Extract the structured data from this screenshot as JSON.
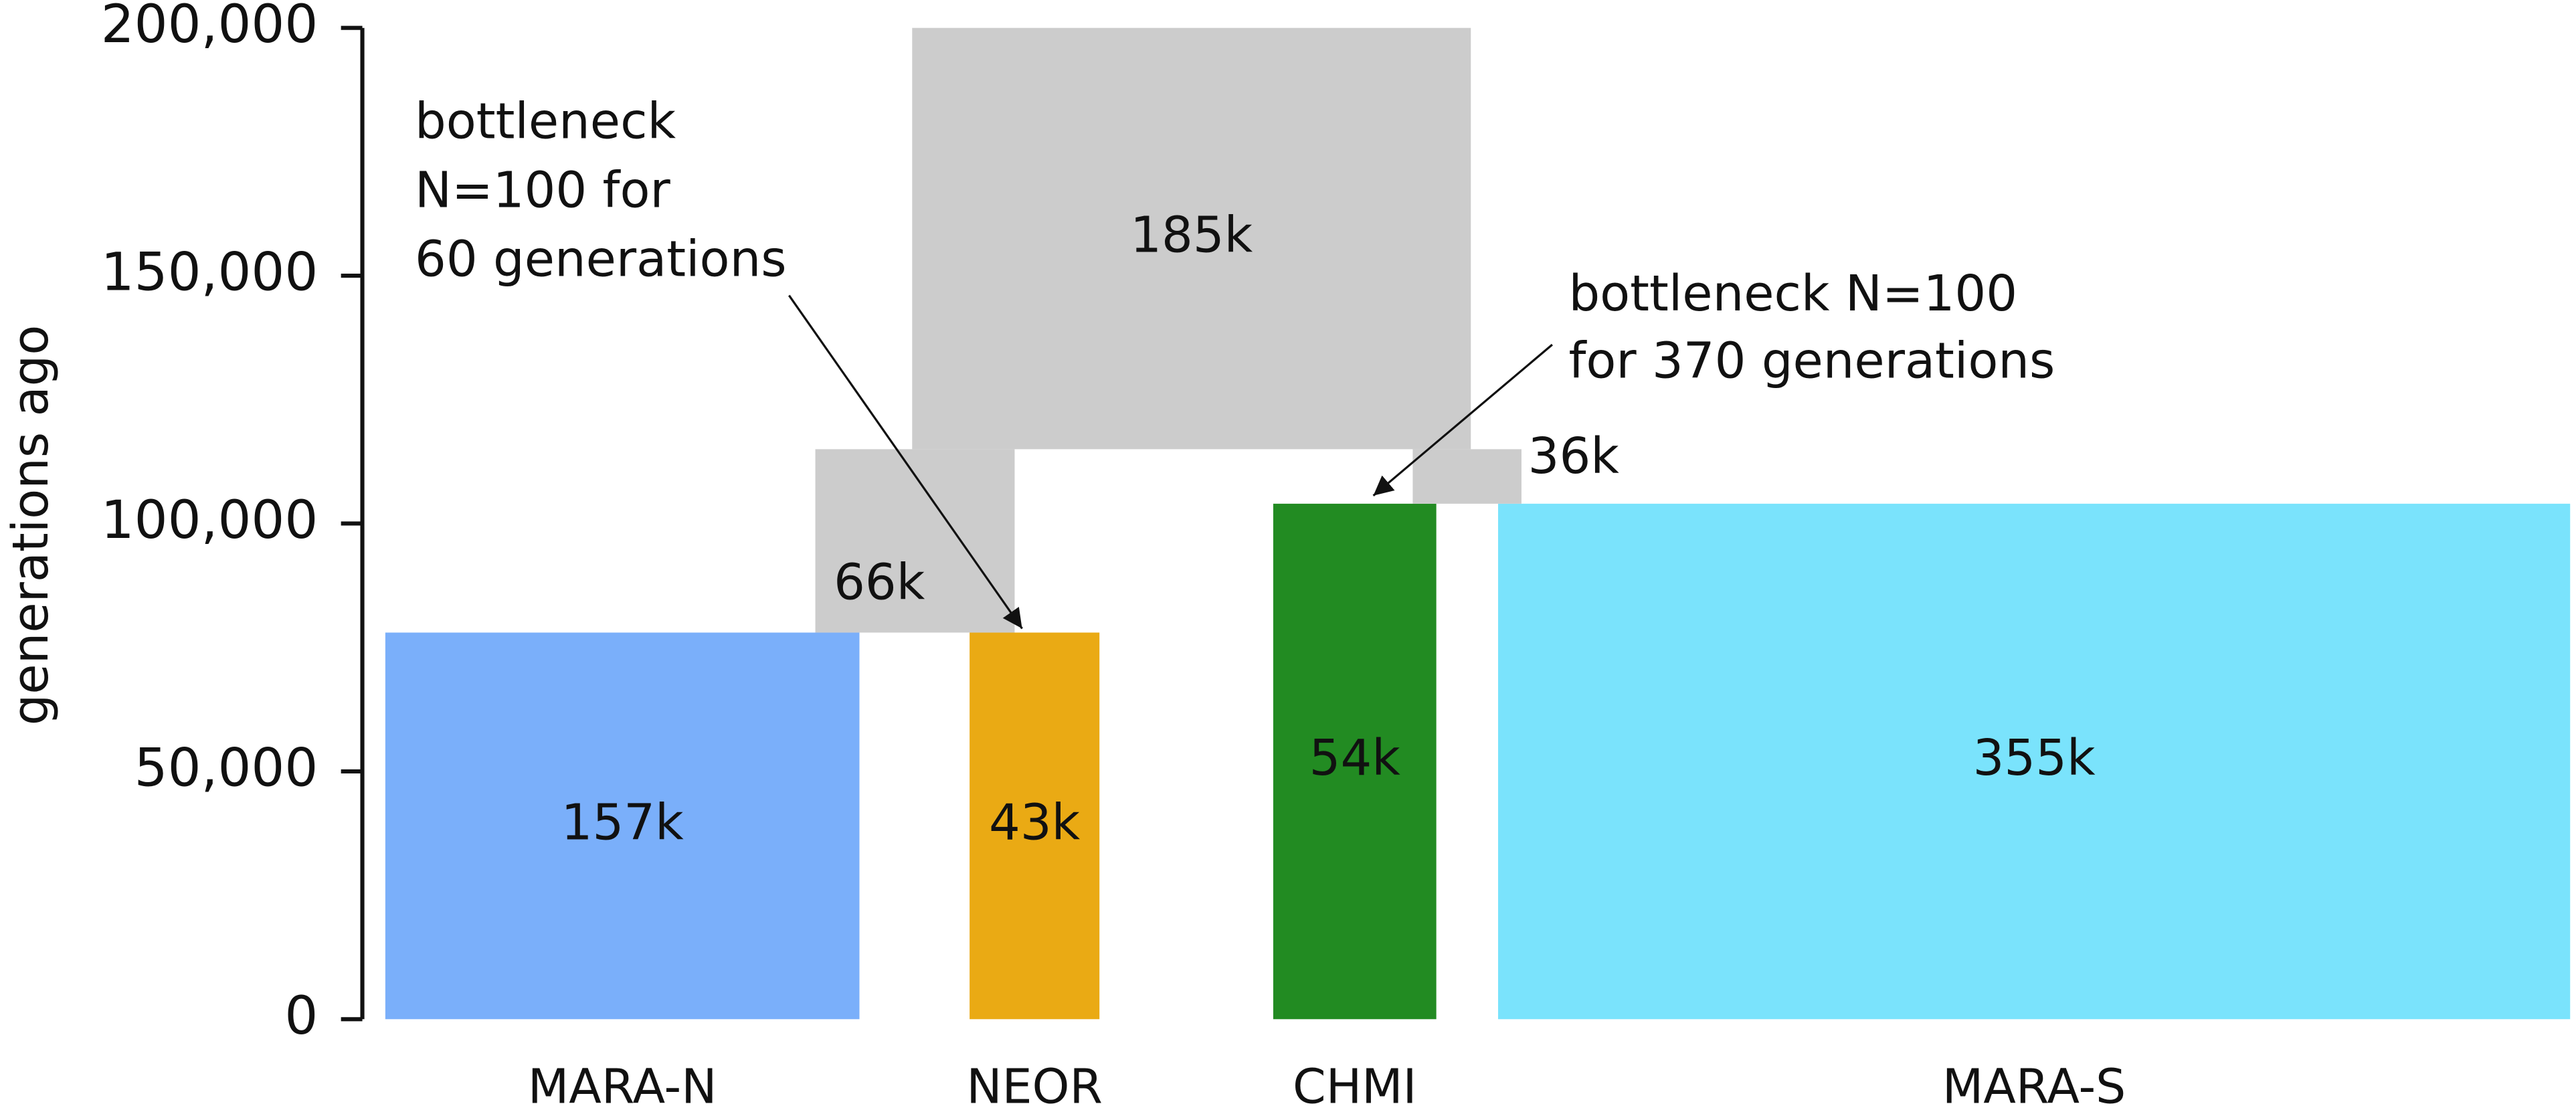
{
  "chart_data": {
    "type": "demography",
    "ylabel": "generations ago",
    "ylim": [
      0,
      200000
    ],
    "yticks": [
      0,
      {
        "value": 50000,
        "label": "50,000"
      },
      {
        "value": 100000,
        "label": "100,000"
      },
      {
        "value": 150000,
        "label": "150,000"
      },
      {
        "value": 200000,
        "label": "200,000"
      }
    ],
    "demes": [
      {
        "name": "MARA-N",
        "size": 157000,
        "size_label": "157k",
        "start": 78000,
        "end": 0,
        "color": "#7aaffa"
      },
      {
        "name": "NEOR",
        "size": 43000,
        "size_label": "43k",
        "start": 78000,
        "end": 0,
        "color": "#eaaa14"
      },
      {
        "name": "CHMI",
        "size": 54000,
        "size_label": "54k",
        "start": 104000,
        "end": 0,
        "color": "#228b22"
      },
      {
        "name": "MARA-S",
        "size": 355000,
        "size_label": "355k",
        "start": 104000,
        "end": 0,
        "color": "#7ae3fc"
      },
      {
        "name": null,
        "size": 66000,
        "size_label": "66k",
        "start": 115000,
        "end": 78000,
        "color": "#cccccc"
      },
      {
        "name": null,
        "size": 185000,
        "size_label": "185k",
        "start": 200000,
        "end": 115000,
        "color": "#cccccc"
      },
      {
        "name": null,
        "size": 36000,
        "size_label": "36k",
        "start": 115000,
        "end": 104000,
        "color": "#cccccc"
      }
    ],
    "annotations": [
      {
        "lines": [
          "bottleneck",
          "N=100 for",
          "60 generations"
        ]
      },
      {
        "lines": [
          "bottleneck N=100",
          "for 370 generations"
        ]
      }
    ]
  }
}
